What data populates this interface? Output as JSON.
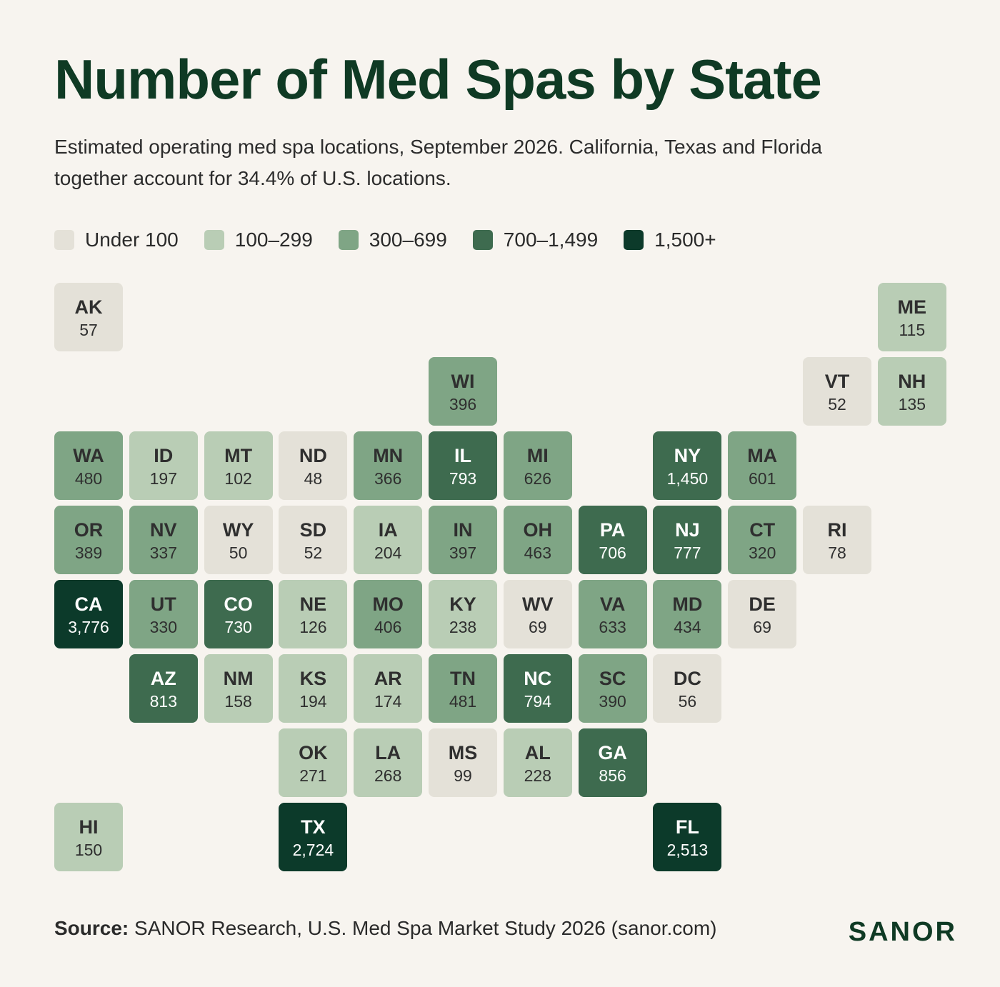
{
  "title": "Number of Med Spas by State",
  "subtitle": "Estimated operating med spa locations, September 2026. California, Texas and Florida together account for 34.4% of U.S. locations.",
  "legend": [
    {
      "label": "Under 100",
      "color": "#e4e1d8"
    },
    {
      "label": "100–299",
      "color": "#b9cdb5"
    },
    {
      "label": "300–699",
      "color": "#7fa585"
    },
    {
      "label": "700–1,499",
      "color": "#3e6b4f"
    },
    {
      "label": "1,500+",
      "color": "#0c3a2a"
    }
  ],
  "text_colors": {
    "light": "#2f2f2f",
    "dark": "#ffffff"
  },
  "chart_data": {
    "type": "heatmap",
    "title": "Number of Med Spas by State",
    "tiles": [
      {
        "state": "AK",
        "value": 57,
        "value_label": "57",
        "col": 0,
        "row": 0
      },
      {
        "state": "ME",
        "value": 115,
        "value_label": "115",
        "col": 11,
        "row": 0
      },
      {
        "state": "WI",
        "value": 396,
        "value_label": "396",
        "col": 5,
        "row": 1
      },
      {
        "state": "VT",
        "value": 52,
        "value_label": "52",
        "col": 10,
        "row": 1
      },
      {
        "state": "NH",
        "value": 135,
        "value_label": "135",
        "col": 11,
        "row": 1
      },
      {
        "state": "WA",
        "value": 480,
        "value_label": "480",
        "col": 0,
        "row": 2
      },
      {
        "state": "ID",
        "value": 197,
        "value_label": "197",
        "col": 1,
        "row": 2
      },
      {
        "state": "MT",
        "value": 102,
        "value_label": "102",
        "col": 2,
        "row": 2
      },
      {
        "state": "ND",
        "value": 48,
        "value_label": "48",
        "col": 3,
        "row": 2
      },
      {
        "state": "MN",
        "value": 366,
        "value_label": "366",
        "col": 4,
        "row": 2
      },
      {
        "state": "IL",
        "value": 793,
        "value_label": "793",
        "col": 5,
        "row": 2
      },
      {
        "state": "MI",
        "value": 626,
        "value_label": "626",
        "col": 6,
        "row": 2
      },
      {
        "state": "NY",
        "value": 1450,
        "value_label": "1,450",
        "col": 8,
        "row": 2
      },
      {
        "state": "MA",
        "value": 601,
        "value_label": "601",
        "col": 9,
        "row": 2
      },
      {
        "state": "OR",
        "value": 389,
        "value_label": "389",
        "col": 0,
        "row": 3
      },
      {
        "state": "NV",
        "value": 337,
        "value_label": "337",
        "col": 1,
        "row": 3
      },
      {
        "state": "WY",
        "value": 50,
        "value_label": "50",
        "col": 2,
        "row": 3
      },
      {
        "state": "SD",
        "value": 52,
        "value_label": "52",
        "col": 3,
        "row": 3
      },
      {
        "state": "IA",
        "value": 204,
        "value_label": "204",
        "col": 4,
        "row": 3
      },
      {
        "state": "IN",
        "value": 397,
        "value_label": "397",
        "col": 5,
        "row": 3
      },
      {
        "state": "OH",
        "value": 463,
        "value_label": "463",
        "col": 6,
        "row": 3
      },
      {
        "state": "PA",
        "value": 706,
        "value_label": "706",
        "col": 7,
        "row": 3
      },
      {
        "state": "NJ",
        "value": 777,
        "value_label": "777",
        "col": 8,
        "row": 3
      },
      {
        "state": "CT",
        "value": 320,
        "value_label": "320",
        "col": 9,
        "row": 3
      },
      {
        "state": "RI",
        "value": 78,
        "value_label": "78",
        "col": 10,
        "row": 3
      },
      {
        "state": "CA",
        "value": 3776,
        "value_label": "3,776",
        "col": 0,
        "row": 4
      },
      {
        "state": "UT",
        "value": 330,
        "value_label": "330",
        "col": 1,
        "row": 4
      },
      {
        "state": "CO",
        "value": 730,
        "value_label": "730",
        "col": 2,
        "row": 4
      },
      {
        "state": "NE",
        "value": 126,
        "value_label": "126",
        "col": 3,
        "row": 4
      },
      {
        "state": "MO",
        "value": 406,
        "value_label": "406",
        "col": 4,
        "row": 4
      },
      {
        "state": "KY",
        "value": 238,
        "value_label": "238",
        "col": 5,
        "row": 4
      },
      {
        "state": "WV",
        "value": 69,
        "value_label": "69",
        "col": 6,
        "row": 4
      },
      {
        "state": "VA",
        "value": 633,
        "value_label": "633",
        "col": 7,
        "row": 4
      },
      {
        "state": "MD",
        "value": 434,
        "value_label": "434",
        "col": 8,
        "row": 4
      },
      {
        "state": "DE",
        "value": 69,
        "value_label": "69",
        "col": 9,
        "row": 4
      },
      {
        "state": "AZ",
        "value": 813,
        "value_label": "813",
        "col": 1,
        "row": 5
      },
      {
        "state": "NM",
        "value": 158,
        "value_label": "158",
        "col": 2,
        "row": 5
      },
      {
        "state": "KS",
        "value": 194,
        "value_label": "194",
        "col": 3,
        "row": 5
      },
      {
        "state": "AR",
        "value": 174,
        "value_label": "174",
        "col": 4,
        "row": 5
      },
      {
        "state": "TN",
        "value": 481,
        "value_label": "481",
        "col": 5,
        "row": 5
      },
      {
        "state": "NC",
        "value": 794,
        "value_label": "794",
        "col": 6,
        "row": 5
      },
      {
        "state": "SC",
        "value": 390,
        "value_label": "390",
        "col": 7,
        "row": 5
      },
      {
        "state": "DC",
        "value": 56,
        "value_label": "56",
        "col": 8,
        "row": 5
      },
      {
        "state": "OK",
        "value": 271,
        "value_label": "271",
        "col": 3,
        "row": 6
      },
      {
        "state": "LA",
        "value": 268,
        "value_label": "268",
        "col": 4,
        "row": 6
      },
      {
        "state": "MS",
        "value": 99,
        "value_label": "99",
        "col": 5,
        "row": 6
      },
      {
        "state": "AL",
        "value": 228,
        "value_label": "228",
        "col": 6,
        "row": 6
      },
      {
        "state": "GA",
        "value": 856,
        "value_label": "856",
        "col": 7,
        "row": 6
      },
      {
        "state": "HI",
        "value": 150,
        "value_label": "150",
        "col": 0,
        "row": 7
      },
      {
        "state": "TX",
        "value": 2724,
        "value_label": "2,724",
        "col": 3,
        "row": 7
      },
      {
        "state": "FL",
        "value": 2513,
        "value_label": "2,513",
        "col": 8,
        "row": 7
      }
    ]
  },
  "source": {
    "label": "Source:",
    "text": " SANOR Research, U.S. Med Spa Market Study 2026 (sanor.com)"
  },
  "brand": "SANOR"
}
